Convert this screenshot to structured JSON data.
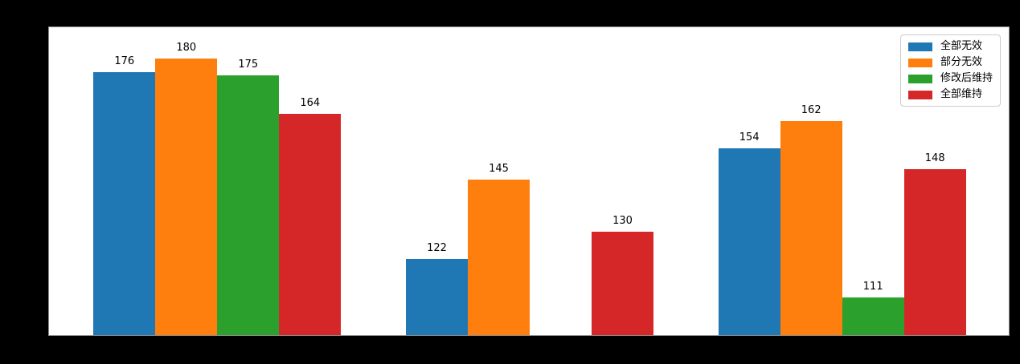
{
  "figure": {
    "background_color": "#000000",
    "plot_background_color": "#ffffff"
  },
  "chart_data": {
    "type": "bar",
    "title": "",
    "xlabel": "",
    "ylabel": "",
    "categories": [
      "",
      "",
      ""
    ],
    "series": [
      {
        "name": "全部无效",
        "color": "#1f77b4",
        "values": [
          176,
          122,
          154
        ]
      },
      {
        "name": "部分无效",
        "color": "#ff7f0e",
        "values": [
          180,
          145,
          162
        ]
      },
      {
        "name": "修改后维持",
        "color": "#2ca02c",
        "values": [
          175,
          null,
          111
        ]
      },
      {
        "name": "全部维持",
        "color": "#d62728",
        "values": [
          164,
          130,
          148
        ]
      }
    ],
    "ylim": [
      100,
      189
    ],
    "grid": false,
    "bar_value_labels_shown": true,
    "legend": {
      "position": "upper-right",
      "labels": [
        "全部无效",
        "部分无效",
        "修改后维持",
        "全部维持"
      ]
    }
  }
}
